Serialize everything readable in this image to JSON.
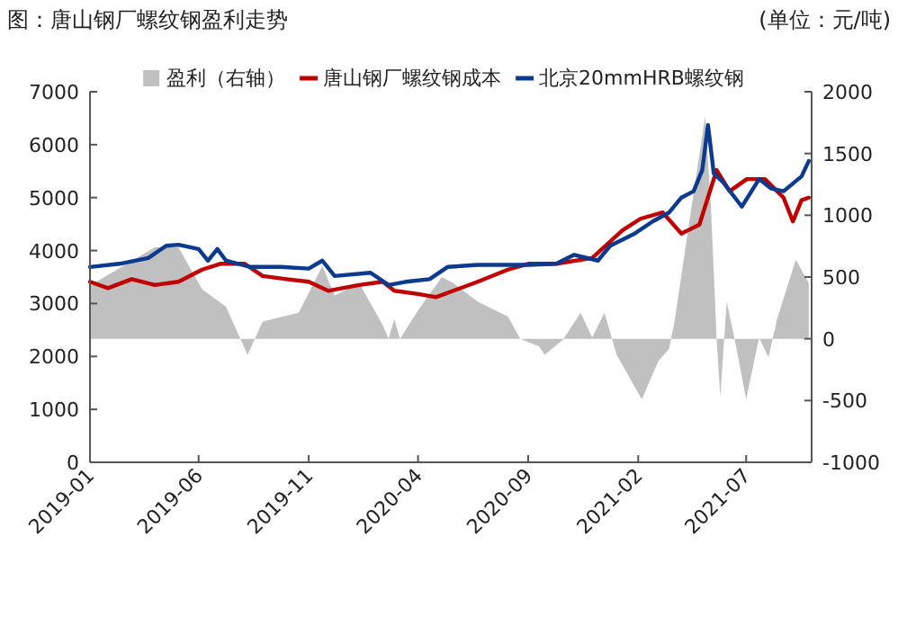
{
  "chart_data": {
    "type": "line",
    "title": "图：唐山钢厂螺纹钢盈利走势",
    "subtitle": "(单位：元/吨)",
    "xlim": [
      "2019-01-01",
      "2021-09-30"
    ],
    "xticks": [
      "2019-01",
      "2019-06",
      "2019-11",
      "2020-04",
      "2020-09",
      "2021-02",
      "2021-07"
    ],
    "ylim": [
      0,
      7000
    ],
    "yticks": [
      0,
      1000,
      2000,
      3000,
      4000,
      5000,
      6000,
      7000
    ],
    "y2lim": [
      -1000,
      2000
    ],
    "y2ticks": [
      -1000,
      -500,
      0,
      500,
      1000,
      1500,
      2000
    ],
    "legend": "top",
    "grid": false,
    "series": [
      {
        "name": "盈利（右轴）",
        "type": "area",
        "axis": "y2",
        "color": "#c0c0c0",
        "x": [
          "2019-01-01",
          "2019-04-01",
          "2019-05-04",
          "2019-06-06",
          "2019-07-09",
          "2019-08-08",
          "2019-08-29",
          "2019-10-18",
          "2019-11-20",
          "2019-12-07",
          "2020-01-10",
          "2020-02-12",
          "2020-02-20",
          "2020-02-28",
          "2020-03-07",
          "2020-04-01",
          "2020-05-04",
          "2020-05-20",
          "2020-06-23",
          "2020-08-04",
          "2020-08-21",
          "2020-09-16",
          "2020-09-24",
          "2020-10-19",
          "2020-11-13",
          "2020-11-29",
          "2020-12-16",
          "2021-01-02",
          "2021-02-06",
          "2021-03-01",
          "2021-03-16",
          "2021-03-24",
          "2021-04-10",
          "2021-05-05",
          "2021-05-13",
          "2021-05-21",
          "2021-05-26",
          "2021-06-04",
          "2021-06-16",
          "2021-07-01",
          "2021-07-19",
          "2021-08-01",
          "2021-08-13",
          "2021-09-08",
          "2021-09-26"
        ],
        "values": [
          430,
          740,
          740,
          400,
          260,
          -130,
          140,
          210,
          590,
          350,
          450,
          110,
          0,
          160,
          0,
          230,
          500,
          450,
          300,
          180,
          0,
          -60,
          -130,
          -10,
          210,
          10,
          210,
          -130,
          -490,
          -180,
          -80,
          160,
          830,
          1800,
          1080,
          0,
          -470,
          300,
          -30,
          -490,
          10,
          -150,
          160,
          640,
          450
        ]
      },
      {
        "name": "唐山钢厂螺纹钢成本",
        "color": "#c00000",
        "x": [
          "2019-01-01",
          "2019-01-26",
          "2019-02-28",
          "2019-04-01",
          "2019-05-04",
          "2019-06-06",
          "2019-07-01",
          "2019-08-04",
          "2019-08-29",
          "2019-10-01",
          "2019-11-01",
          "2019-11-28",
          "2020-01-10",
          "2020-02-12",
          "2020-02-28",
          "2020-04-01",
          "2020-04-26",
          "2020-05-20",
          "2020-06-23",
          "2020-08-04",
          "2020-09-01",
          "2020-10-10",
          "2020-11-29",
          "2021-01-10",
          "2021-02-04",
          "2021-03-07",
          "2021-04-02",
          "2021-04-27",
          "2021-05-21",
          "2021-06-08",
          "2021-07-02",
          "2021-07-27",
          "2021-08-22",
          "2021-09-04",
          "2021-09-16",
          "2021-09-26"
        ],
        "values": [
          3410,
          3290,
          3460,
          3350,
          3410,
          3640,
          3750,
          3750,
          3520,
          3460,
          3410,
          3240,
          3350,
          3410,
          3240,
          3180,
          3120,
          3240,
          3410,
          3640,
          3750,
          3750,
          3860,
          4380,
          4600,
          4720,
          4320,
          4490,
          5520,
          5120,
          5350,
          5350,
          5000,
          4550,
          4950,
          5000
        ]
      },
      {
        "name": "北京20mmHRB螺纹钢",
        "color": "#0b3a8e",
        "x": [
          "2019-01-01",
          "2019-02-11",
          "2019-03-23",
          "2019-04-17",
          "2019-05-04",
          "2019-06-01",
          "2019-06-14",
          "2019-06-27",
          "2019-07-09",
          "2019-08-12",
          "2019-09-23",
          "2019-11-01",
          "2019-11-20",
          "2019-12-07",
          "2020-01-26",
          "2020-02-20",
          "2020-03-15",
          "2020-04-17",
          "2020-05-12",
          "2020-06-23",
          "2020-09-01",
          "2020-10-10",
          "2020-11-04",
          "2020-12-07",
          "2020-12-24",
          "2021-01-27",
          "2021-02-21",
          "2021-03-16",
          "2021-04-02",
          "2021-04-19",
          "2021-05-01",
          "2021-05-09",
          "2021-05-17",
          "2021-05-30",
          "2021-06-25",
          "2021-07-19",
          "2021-08-05",
          "2021-08-22",
          "2021-09-16",
          "2021-09-26"
        ],
        "values": [
          3690,
          3750,
          3860,
          4090,
          4110,
          4030,
          3810,
          4030,
          3810,
          3690,
          3690,
          3660,
          3810,
          3520,
          3580,
          3350,
          3410,
          3460,
          3690,
          3730,
          3730,
          3750,
          3920,
          3810,
          4090,
          4320,
          4550,
          4720,
          5000,
          5120,
          5520,
          6370,
          5460,
          5290,
          4830,
          5350,
          5170,
          5120,
          5400,
          5690
        ]
      }
    ]
  }
}
